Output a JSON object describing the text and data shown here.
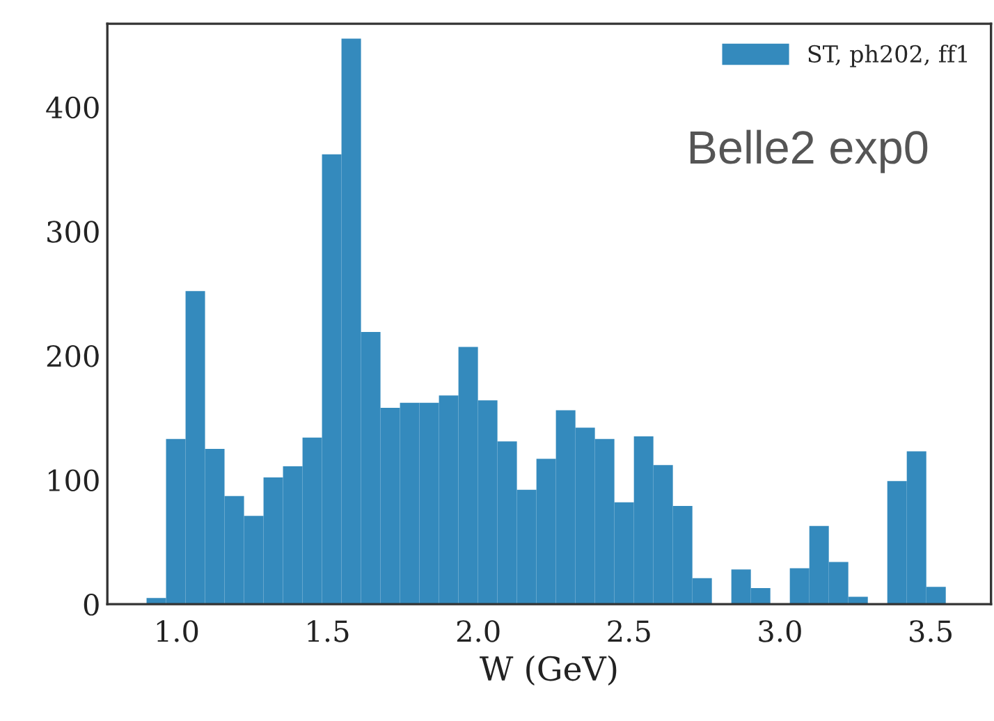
{
  "chart_data": {
    "type": "histogram",
    "xlabel": "W (GeV)",
    "bins": [
      0.9,
      0.9646,
      1.0293,
      1.0939,
      1.1585,
      1.2232,
      1.2878,
      1.3524,
      1.4171,
      1.4817,
      1.5463,
      1.611,
      1.6756,
      1.7402,
      1.8049,
      1.8695,
      1.9341,
      1.9988,
      2.0634,
      2.128,
      2.1927,
      2.2573,
      2.322,
      2.3866,
      2.4512,
      2.5159,
      2.5805,
      2.6451,
      2.7098,
      2.7744,
      2.839,
      2.9037,
      2.9683,
      3.0329,
      3.0976,
      3.1622,
      3.2268,
      3.2915,
      3.3561,
      3.4207,
      3.4854,
      3.55
    ],
    "series": [
      {
        "name": "ST, ph202, ff1",
        "color": "#348abd",
        "values": [
          5,
          133,
          252,
          125,
          87,
          71,
          102,
          111,
          134,
          362,
          455,
          219,
          158,
          162,
          162,
          168,
          207,
          164,
          131,
          92,
          117,
          156,
          142,
          133,
          82,
          135,
          112,
          79,
          21,
          0,
          28,
          13,
          0,
          29,
          63,
          34,
          6,
          0,
          99,
          123,
          14
        ]
      }
    ],
    "xlim": [
      0.77,
      3.7
    ],
    "xticks": [
      {
        "value": 1.0,
        "label": "1.0"
      },
      {
        "value": 1.5,
        "label": "1.5"
      },
      {
        "value": 2.0,
        "label": "2.0"
      },
      {
        "value": 2.5,
        "label": "2.5"
      },
      {
        "value": 3.0,
        "label": "3.0"
      },
      {
        "value": 3.5,
        "label": "3.5"
      }
    ],
    "ylim": [
      0,
      467
    ],
    "yticks": [
      0,
      100,
      200,
      300,
      400
    ],
    "legend": "top right",
    "grid": false,
    "annotations": [
      {
        "text": "Belle2 exp0"
      }
    ]
  }
}
